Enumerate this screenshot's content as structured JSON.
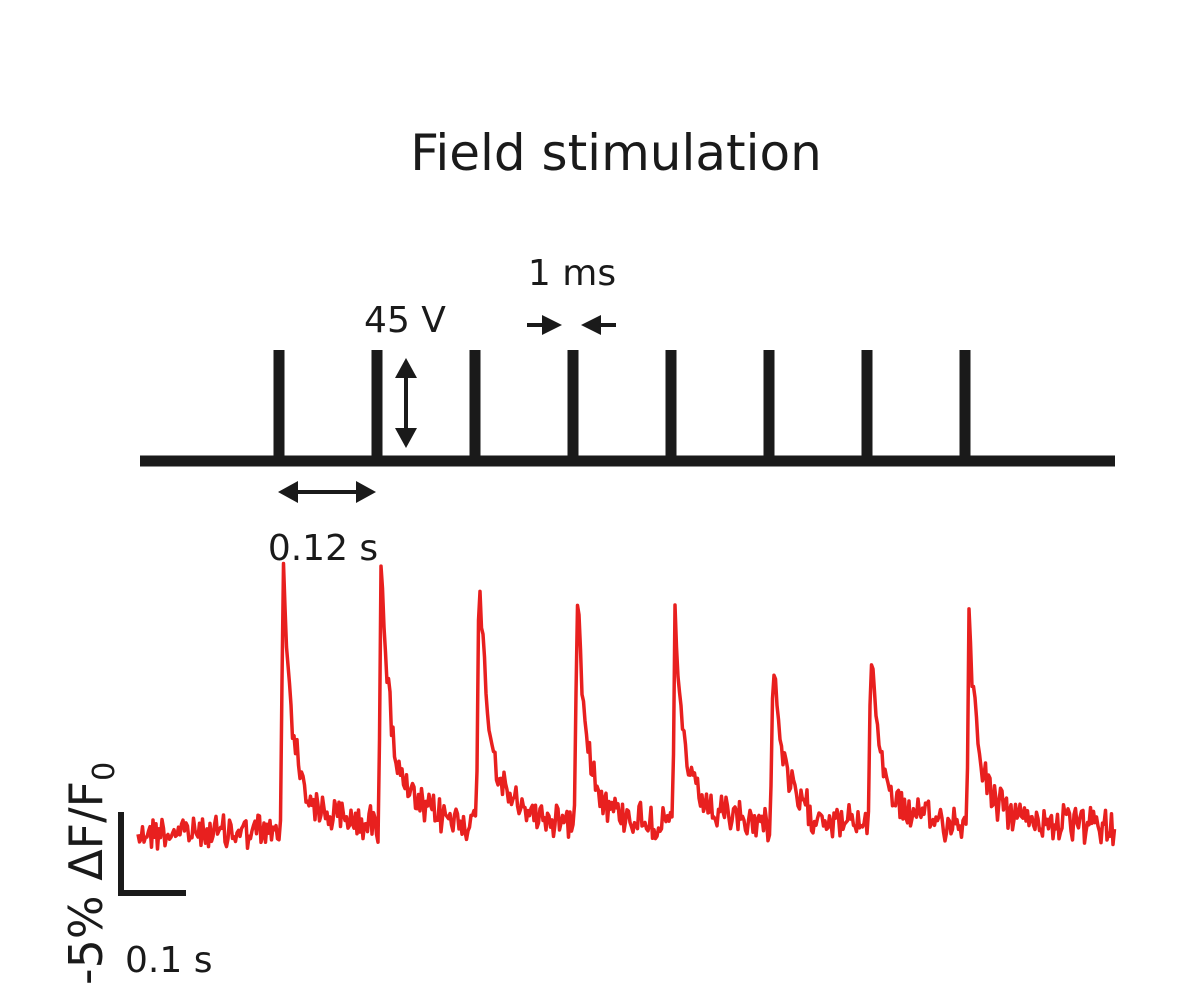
{
  "title": "Field stimulation",
  "stimulus": {
    "pulse_count": 8,
    "amplitude_label": "45 V",
    "pulse_width_label": "1 ms",
    "interval_label": "0.12 s",
    "color": "#1a1a1a"
  },
  "response": {
    "color": "#e8201f",
    "peaks_relative": [
      0.98,
      1.0,
      0.96,
      0.92,
      0.74,
      0.64,
      0.67,
      0.77
    ]
  },
  "scale_bar": {
    "y_label_main": "-5% ΔF/F",
    "y_label_sub": "0",
    "x_label": "0.1 s"
  }
}
